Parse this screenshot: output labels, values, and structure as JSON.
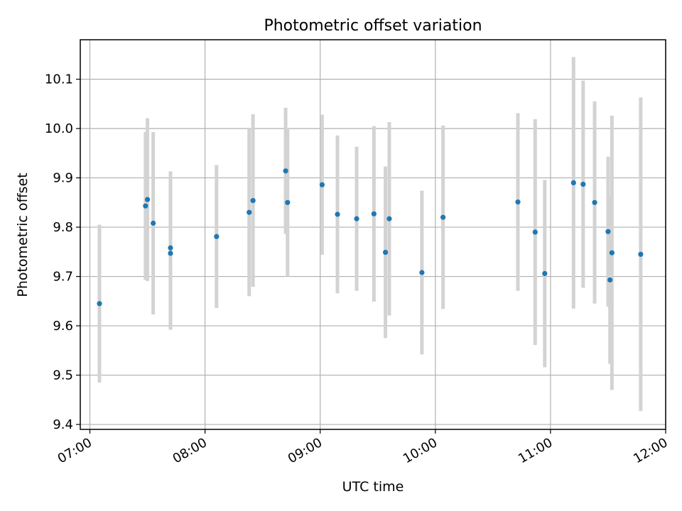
{
  "chart_data": {
    "type": "scatter",
    "title": "Photometric offset variation",
    "xlabel": "UTC time",
    "ylabel": "Photometric offset",
    "x_ticks": [
      {
        "time": "07:00",
        "label": "07:00"
      },
      {
        "time": "08:00",
        "label": "08:00"
      },
      {
        "time": "09:00",
        "label": "09:00"
      },
      {
        "time": "10:00",
        "label": "10:00"
      },
      {
        "time": "11:00",
        "label": "11:00"
      },
      {
        "time": "12:00",
        "label": "12:00"
      }
    ],
    "y_ticks": [
      {
        "value": 9.4,
        "label": "9.4"
      },
      {
        "value": 9.5,
        "label": "9.5"
      },
      {
        "value": 9.6,
        "label": "9.6"
      },
      {
        "value": 9.7,
        "label": "9.7"
      },
      {
        "value": 9.8,
        "label": "9.8"
      },
      {
        "value": 9.9,
        "label": "9.9"
      },
      {
        "value": 10.0,
        "label": "10.0"
      },
      {
        "value": 10.1,
        "label": "10.1"
      }
    ],
    "xlim": [
      "06:55",
      "12:00"
    ],
    "ylim": [
      9.39,
      10.18
    ],
    "grid": true,
    "marker_color": "#1f77b4",
    "errorbar_color": "#d3d3d3",
    "points": [
      {
        "x": "07:05",
        "y": 9.645,
        "err": 0.16
      },
      {
        "x": "07:29",
        "y": 9.843,
        "err": 0.15
      },
      {
        "x": "07:30",
        "y": 9.856,
        "err": 0.165
      },
      {
        "x": "07:33",
        "y": 9.808,
        "err": 0.185
      },
      {
        "x": "07:42",
        "y": 9.758,
        "err": 0.155
      },
      {
        "x": "07:42",
        "y": 9.747,
        "err": 0.155
      },
      {
        "x": "08:06",
        "y": 9.781,
        "err": 0.145
      },
      {
        "x": "08:23",
        "y": 9.83,
        "err": 0.17
      },
      {
        "x": "08:25",
        "y": 9.854,
        "err": 0.175
      },
      {
        "x": "08:42",
        "y": 9.914,
        "err": 0.128
      },
      {
        "x": "08:43",
        "y": 9.85,
        "err": 0.15
      },
      {
        "x": "09:01",
        "y": 9.886,
        "err": 0.142
      },
      {
        "x": "09:09",
        "y": 9.826,
        "err": 0.16
      },
      {
        "x": "09:19",
        "y": 9.817,
        "err": 0.146
      },
      {
        "x": "09:28",
        "y": 9.827,
        "err": 0.178
      },
      {
        "x": "09:34",
        "y": 9.749,
        "err": 0.174
      },
      {
        "x": "09:36",
        "y": 9.817,
        "err": 0.196
      },
      {
        "x": "09:53",
        "y": 9.708,
        "err": 0.166
      },
      {
        "x": "10:04",
        "y": 9.82,
        "err": 0.186
      },
      {
        "x": "10:43",
        "y": 9.851,
        "err": 0.18
      },
      {
        "x": "10:52",
        "y": 9.79,
        "err": 0.229
      },
      {
        "x": "10:57",
        "y": 9.706,
        "err": 0.19
      },
      {
        "x": "11:12",
        "y": 9.89,
        "err": 0.255
      },
      {
        "x": "11:17",
        "y": 9.887,
        "err": 0.21
      },
      {
        "x": "11:23",
        "y": 9.85,
        "err": 0.205
      },
      {
        "x": "11:30",
        "y": 9.791,
        "err": 0.152
      },
      {
        "x": "11:31",
        "y": 9.693,
        "err": 0.17
      },
      {
        "x": "11:32",
        "y": 9.748,
        "err": 0.278
      },
      {
        "x": "11:47",
        "y": 9.745,
        "err": 0.318
      }
    ]
  }
}
